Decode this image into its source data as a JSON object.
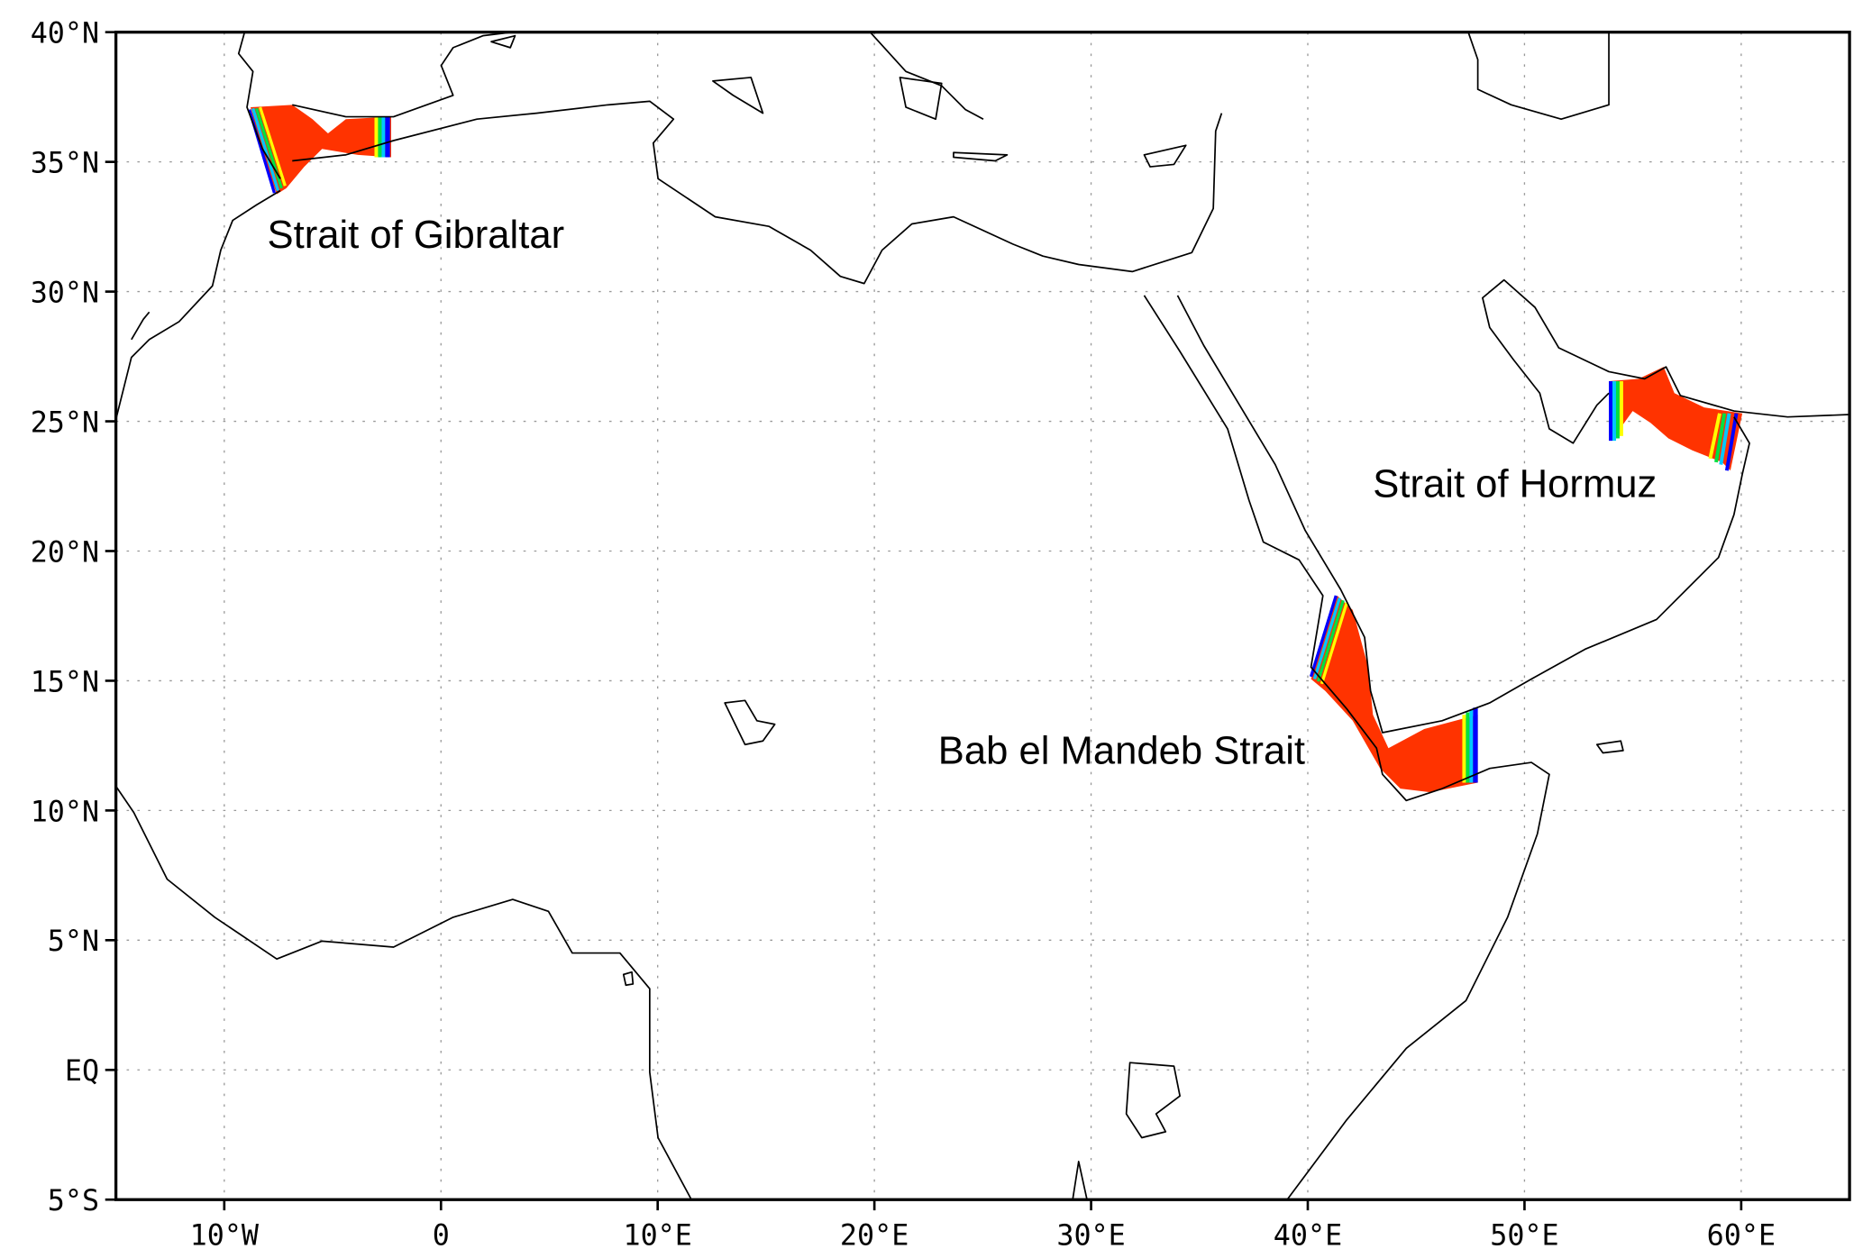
{
  "map": {
    "lon_range": [
      -15,
      65
    ],
    "lat_range": [
      -5,
      40
    ],
    "x_ticks": [
      {
        "lon": -10,
        "label": "10°W"
      },
      {
        "lon": 0,
        "label": "0"
      },
      {
        "lon": 10,
        "label": "10°E"
      },
      {
        "lon": 20,
        "label": "20°E"
      },
      {
        "lon": 30,
        "label": "30°E"
      },
      {
        "lon": 40,
        "label": "40°E"
      },
      {
        "lon": 50,
        "label": "50°E"
      },
      {
        "lon": 60,
        "label": "60°E"
      }
    ],
    "y_ticks": [
      {
        "lat": 40,
        "label": "40°N"
      },
      {
        "lat": 35,
        "label": "35°N"
      },
      {
        "lat": 30,
        "label": "30°N"
      },
      {
        "lat": 25,
        "label": "25°N"
      },
      {
        "lat": 20,
        "label": "20°N"
      },
      {
        "lat": 15,
        "label": "15°N"
      },
      {
        "lat": 10,
        "label": "10°N"
      },
      {
        "lat": 5,
        "label": "5°N"
      },
      {
        "lat": 0,
        "label": "EQ"
      },
      {
        "lat": -5,
        "label": "5°S"
      }
    ],
    "annotations": {
      "gibraltar": "Strait of Gibraltar",
      "hormuz": "Strait of Hormuz",
      "bab_el_mandeb": "Bab el Mandeb Strait"
    },
    "colors": {
      "fill": "#ff3300",
      "edge_ramp": [
        "#0000ff",
        "#00c8ff",
        "#00e040",
        "#ffff00",
        "#ff9900"
      ]
    }
  }
}
